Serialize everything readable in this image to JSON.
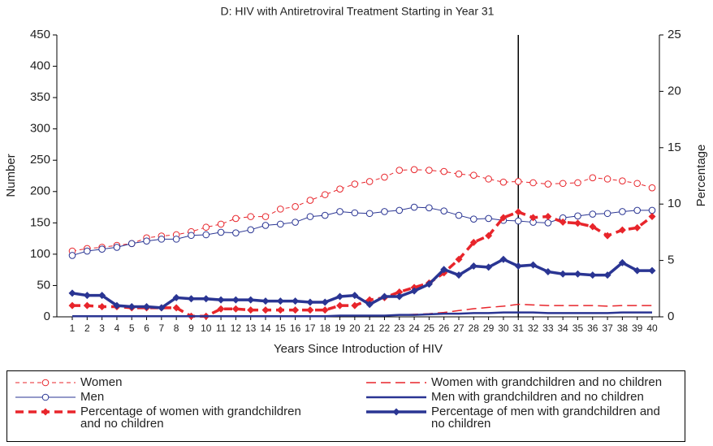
{
  "chart_data": {
    "type": "line",
    "title": "D: HIV with Antiretroviral Treatment Starting in Year 31",
    "x_label": "Years Since Introduction of HIV",
    "y_label": "Number",
    "y2_label": "Percentage",
    "categories": [
      1,
      2,
      3,
      4,
      5,
      6,
      7,
      8,
      9,
      10,
      11,
      12,
      13,
      14,
      15,
      16,
      17,
      18,
      19,
      20,
      21,
      22,
      23,
      24,
      25,
      26,
      27,
      28,
      29,
      30,
      31,
      32,
      33,
      34,
      35,
      36,
      37,
      38,
      39,
      40
    ],
    "ylim": [
      0,
      450
    ],
    "yticks": [
      0,
      50,
      100,
      150,
      200,
      250,
      300,
      350,
      400,
      450
    ],
    "y2lim": [
      0,
      25
    ],
    "y2ticks": [
      0,
      5,
      10,
      15,
      20,
      25
    ],
    "vline": 31,
    "series": [
      {
        "name": "Women",
        "color": "#e8252b",
        "dash": "5,4",
        "width": 1,
        "marker": "open-circle",
        "values": [
          105,
          109,
          111,
          114,
          117,
          126,
          129,
          131,
          136,
          143,
          148,
          157,
          160,
          160,
          172,
          176,
          186,
          195,
          204,
          212,
          216,
          223,
          234,
          235,
          234,
          232,
          228,
          226,
          220,
          215,
          216,
          214,
          212,
          213,
          214,
          222,
          220,
          217,
          213,
          206
        ]
      },
      {
        "name": "Men",
        "color": "#2a3593",
        "dash": "",
        "width": 1,
        "marker": "open-circle",
        "values": [
          98,
          105,
          108,
          111,
          117,
          121,
          124,
          124,
          130,
          131,
          135,
          134,
          139,
          146,
          148,
          151,
          160,
          162,
          168,
          166,
          165,
          168,
          170,
          175,
          174,
          169,
          162,
          156,
          157,
          154,
          153,
          151,
          150,
          158,
          161,
          164,
          165,
          168,
          170,
          170
        ]
      },
      {
        "name": "Percentage of women with grandchildren and no children",
        "color": "#e8252b",
        "dash": "10,6",
        "width": 3.5,
        "marker": "diamond",
        "axis": "y2",
        "values": [
          1.0,
          1.0,
          0.9,
          0.9,
          0.8,
          0.8,
          0.8,
          0.8,
          0.05,
          0.05,
          0.7,
          0.7,
          0.6,
          0.6,
          0.6,
          0.6,
          0.6,
          0.6,
          1.0,
          1.0,
          1.5,
          1.7,
          2.2,
          2.6,
          3.0,
          3.9,
          5.1,
          6.6,
          7.2,
          8.8,
          9.3,
          8.8,
          8.9,
          8.4,
          8.3,
          8.0,
          7.2,
          7.7,
          7.9,
          8.9
        ]
      },
      {
        "name": "Women with grandchildren and no children",
        "color": "#e8252b",
        "dash": "12,6",
        "width": 1.5,
        "marker": "none",
        "values": [
          1,
          1,
          1,
          1,
          1,
          1,
          1,
          1,
          1,
          1,
          1,
          1,
          1,
          1,
          1,
          1,
          1,
          1,
          2,
          2,
          2,
          2,
          3,
          4,
          5,
          7,
          10,
          13,
          15,
          17,
          20,
          19,
          18,
          18,
          18,
          18,
          17,
          18,
          18,
          18
        ]
      },
      {
        "name": "Men with grandchildren and no children",
        "color": "#2a3593",
        "dash": "",
        "width": 2.5,
        "marker": "none",
        "values": [
          1,
          1,
          1,
          1,
          1,
          1,
          1,
          1,
          1,
          1,
          1,
          1,
          1,
          1,
          1,
          1,
          1,
          1,
          2,
          2,
          2,
          2,
          3,
          3,
          4,
          5,
          5,
          6,
          6,
          7,
          7,
          7,
          6,
          6,
          6,
          6,
          6,
          7,
          7,
          7
        ]
      },
      {
        "name": "Percentage of men with grandchildren and no children",
        "color": "#2a3593",
        "dash": "",
        "width": 3.5,
        "marker": "diamond",
        "axis": "y2",
        "values": [
          2.1,
          1.9,
          1.9,
          1.0,
          0.9,
          0.9,
          0.8,
          1.7,
          1.6,
          1.6,
          1.5,
          1.5,
          1.5,
          1.4,
          1.4,
          1.4,
          1.3,
          1.3,
          1.8,
          1.9,
          1.1,
          1.8,
          1.8,
          2.3,
          2.9,
          4.2,
          3.7,
          4.5,
          4.4,
          5.1,
          4.5,
          4.6,
          4.0,
          3.8,
          3.8,
          3.7,
          3.7,
          4.8,
          4.1,
          4.1
        ]
      }
    ]
  }
}
